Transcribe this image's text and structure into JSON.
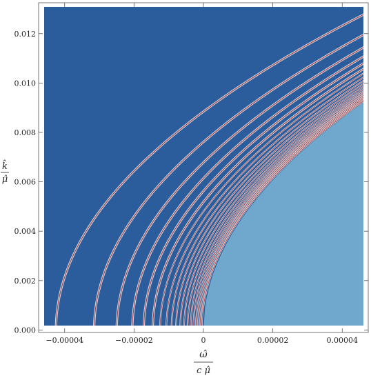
{
  "chart_data": {
    "type": "heatmap",
    "title": "",
    "xlabel": {
      "numerator": "ω̂",
      "denominator": "c μ̂"
    },
    "ylabel": {
      "numerator": "k̂",
      "denominator": "μ̂"
    },
    "xlim": [
      -4.75e-05,
      4.75e-05
    ],
    "ylim": [
      -0.0001,
      0.01325
    ],
    "x_ticks": [
      {
        "value": -4e-05,
        "label": "−0.00004"
      },
      {
        "value": -2e-05,
        "label": "−0.00002"
      },
      {
        "value": 0,
        "label": "0"
      },
      {
        "value": 2e-05,
        "label": "0.00002"
      },
      {
        "value": 4e-05,
        "label": "0.00004"
      }
    ],
    "y_ticks": [
      {
        "value": 0.0,
        "label": "0.000"
      },
      {
        "value": 0.002,
        "label": "0.002"
      },
      {
        "value": 0.004,
        "label": "0.004"
      },
      {
        "value": 0.006,
        "label": "0.006"
      },
      {
        "value": 0.008,
        "label": "0.008"
      },
      {
        "value": 0.01,
        "label": "0.010"
      },
      {
        "value": 0.012,
        "label": "0.012"
      }
    ],
    "background_color": "#2b5c9c",
    "continuum_color": "#6fa8cc",
    "resonance_line_color": "#a83a3a",
    "resonance_halo_color": "#e8f0f4",
    "continuum_boundary": "k = 0.00925 * sqrt(ω / 0.0000465) for ω > 0",
    "resonance_curves_omega_at_k0": [
      -4.25e-05,
      -3.15e-05,
      -2.5e-05,
      -2.05e-05,
      -1.72e-05,
      -1.46e-05,
      -1.25e-05,
      -1.07e-05,
      -9.2e-06,
      -7.9e-06,
      -6.7e-06,
      -5.6e-06,
      -4.6e-06,
      -3.7e-06,
      -2.9e-06,
      -2.2e-06,
      -1.6e-06,
      -1e-06,
      -5e-07
    ],
    "resonance_dispersion": "ω(k) = ω0 + 0.0000465 * (k / 0.00925)^2",
    "grid": false,
    "legend": "none"
  }
}
